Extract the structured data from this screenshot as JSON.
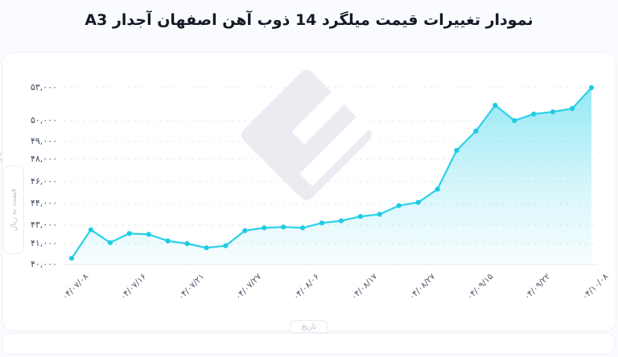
{
  "page": {
    "title": "نمودار تغییرات قیمت میلگرد 14 ذوب آهن اصفهان آجدار A3"
  },
  "icons": {
    "carousel_prev": "‹"
  },
  "chart_data": {
    "type": "area",
    "title": "نمودار تغییرات قیمت میلگرد 14 ذوب آهن اصفهان آجدار A3",
    "xlabel": "تاریخ",
    "ylabel": "قیمت به ریال",
    "x_tick_labels": [
      "۰۴/۰۷/۰۸",
      "۰۴/۰۷/۱۶",
      "۰۴/۰۷/۲۱",
      "۰۴/۰۷/۲۷",
      "۰۴/۰۸/۰۶",
      "۰۴/۰۸/۱۷",
      "۰۴/۰۸/۲۷",
      "۰۴/۰۹/۱۵",
      "۰۴/۰۹/۲۲",
      "۰۴/۱۰/۰۸"
    ],
    "x_tick_every": 3,
    "y_ticks": [
      {
        "label": "۴۰,۰۰۰",
        "value": 40000
      },
      {
        "label": "۴۱,۰۰۰",
        "value": 41000
      },
      {
        "label": "۴۳,۰۰۰",
        "value": 43000
      },
      {
        "label": "۴۴,۰۰۰",
        "value": 44000
      },
      {
        "label": "۴۶,۰۰۰",
        "value": 46000
      },
      {
        "label": "۴۸,۰۰۰",
        "value": 48000
      },
      {
        "label": "۴۹,۰۰۰",
        "value": 49000
      },
      {
        "label": "۵۰,۰۰۰",
        "value": 50000
      },
      {
        "label": "۵۳,۰۰۰",
        "value": 53000
      }
    ],
    "ylim": [
      40000,
      53000
    ],
    "values": [
      40300,
      42500,
      41100,
      42100,
      42000,
      41300,
      41000,
      40800,
      40900,
      42400,
      42700,
      42800,
      42700,
      43100,
      43200,
      43400,
      43500,
      43900,
      44100,
      45300,
      48500,
      49500,
      51400,
      50000,
      50600,
      50800,
      51100,
      53000
    ],
    "grid": "horizontal-dashed",
    "legend": "none",
    "colors": {
      "line": "#2bd1e7",
      "marker": "#1fcbe3",
      "area_top": "rgba(43,209,231,0.50)",
      "area_mid": "rgba(43,209,231,0.20)",
      "area_bottom": "rgba(43,209,231,0.03)",
      "grid": "#e6e9ef",
      "watermark": "#eaecf2"
    }
  }
}
